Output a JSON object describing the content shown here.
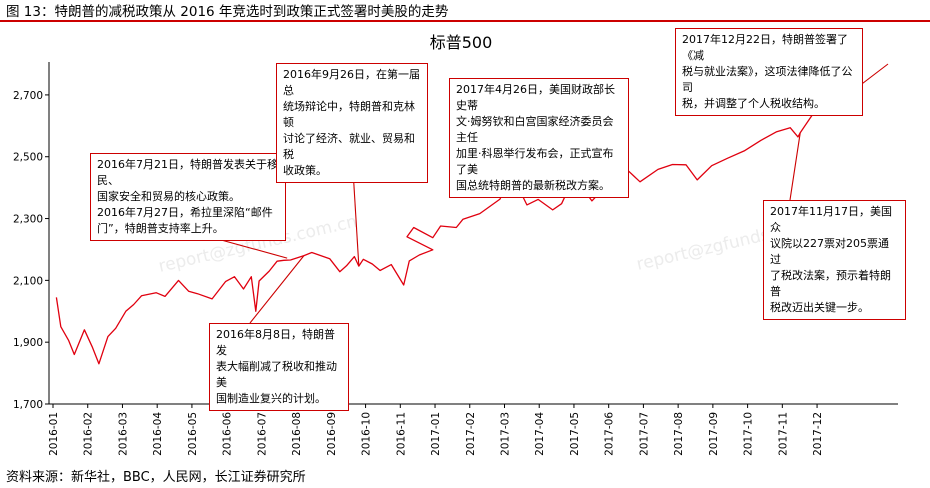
{
  "header": "图 13：特朗普的减税政策从 2016 年竞选时到政策正式签署时美股的走势",
  "source": "资料来源：新华社，BBC，人民网，长江证券研究所",
  "watermark": "report@zgfunds.com.cn",
  "colors": {
    "accent": "#cc0000",
    "line": "#e0000f"
  },
  "chart_data": {
    "type": "line",
    "title": "标普500",
    "ylim": [
      1700,
      2800
    ],
    "yticks": [
      {
        "value": 1700,
        "label": "1,700"
      },
      {
        "value": 1900,
        "label": "1,900"
      },
      {
        "value": 2100,
        "label": "2,100"
      },
      {
        "value": 2300,
        "label": "2,300"
      },
      {
        "value": 2500,
        "label": "2,500"
      },
      {
        "value": 2700,
        "label": "2,700"
      }
    ],
    "xticks": [
      "2016-01",
      "2016-02",
      "2016-03",
      "2016-04",
      "2016-05",
      "2016-06",
      "2016-07",
      "2016-08",
      "2016-09",
      "2016-10",
      "2016-11",
      "2017-01",
      "2017-02",
      "2017-03",
      "2017-04",
      "2017-05",
      "2017-06",
      "2017-07",
      "2017-08",
      "2017-09",
      "2017-10",
      "2017-11",
      "2017-12"
    ],
    "grid": false,
    "legend": "none",
    "series": [
      {
        "points": [
          [
            "2016-01-04",
            2045
          ],
          [
            "2016-01-08",
            1950
          ],
          [
            "2016-01-15",
            1905
          ],
          [
            "2016-01-20",
            1860
          ],
          [
            "2016-01-29",
            1940
          ],
          [
            "2016-02-05",
            1885
          ],
          [
            "2016-02-11",
            1830
          ],
          [
            "2016-02-19",
            1918
          ],
          [
            "2016-02-26",
            1945
          ],
          [
            "2016-03-04",
            2000
          ],
          [
            "2016-03-11",
            2022
          ],
          [
            "2016-03-18",
            2050
          ],
          [
            "2016-03-31",
            2060
          ],
          [
            "2016-04-08",
            2048
          ],
          [
            "2016-04-20",
            2100
          ],
          [
            "2016-04-29",
            2065
          ],
          [
            "2016-05-06",
            2057
          ],
          [
            "2016-05-19",
            2040
          ],
          [
            "2016-05-31",
            2096
          ],
          [
            "2016-06-08",
            2112
          ],
          [
            "2016-06-16",
            2072
          ],
          [
            "2016-06-23",
            2112
          ],
          [
            "2016-06-27",
            2000
          ],
          [
            "2016-06-30",
            2098
          ],
          [
            "2016-07-08",
            2130
          ],
          [
            "2016-07-15",
            2162
          ],
          [
            "2016-07-21",
            2165
          ],
          [
            "2016-07-27",
            2166
          ],
          [
            "2016-08-08",
            2180
          ],
          [
            "2016-08-15",
            2190
          ],
          [
            "2016-08-31",
            2170
          ],
          [
            "2016-09-09",
            2128
          ],
          [
            "2016-09-15",
            2147
          ],
          [
            "2016-09-22",
            2177
          ],
          [
            "2016-09-26",
            2146
          ],
          [
            "2016-09-30",
            2168
          ],
          [
            "2016-10-07",
            2153
          ],
          [
            "2016-10-14",
            2132
          ],
          [
            "2016-10-24",
            2151
          ],
          [
            "2016-11-04",
            2085
          ],
          [
            "2016-11-09",
            2163
          ],
          [
            "2016-11-18",
            2182
          ],
          [
            "2016-11-30",
            2199
          ],
          [
            "2016-12-07",
            2241
          ],
          [
            "2016-12-13",
            2271
          ],
          [
            "2016-12-30",
            2238
          ],
          [
            "2017-01-06",
            2276
          ],
          [
            "2017-01-20",
            2271
          ],
          [
            "2017-01-26",
            2298
          ],
          [
            "2017-02-10",
            2316
          ],
          [
            "2017-02-28",
            2363
          ],
          [
            "2017-03-01",
            2395
          ],
          [
            "2017-03-16",
            2381
          ],
          [
            "2017-03-21",
            2344
          ],
          [
            "2017-03-31",
            2362
          ],
          [
            "2017-04-13",
            2328
          ],
          [
            "2017-04-21",
            2348
          ],
          [
            "2017-04-26",
            2387
          ],
          [
            "2017-05-09",
            2397
          ],
          [
            "2017-05-17",
            2357
          ],
          [
            "2017-05-31",
            2411
          ],
          [
            "2017-06-09",
            2431
          ],
          [
            "2017-06-19",
            2453
          ],
          [
            "2017-06-29",
            2419
          ],
          [
            "2017-07-14",
            2459
          ],
          [
            "2017-07-27",
            2475
          ],
          [
            "2017-08-08",
            2474
          ],
          [
            "2017-08-18",
            2425
          ],
          [
            "2017-08-31",
            2471
          ],
          [
            "2017-09-14",
            2495
          ],
          [
            "2017-09-29",
            2519
          ],
          [
            "2017-10-13",
            2553
          ],
          [
            "2017-10-27",
            2581
          ],
          [
            "2017-11-08",
            2594
          ],
          [
            "2017-11-15",
            2564
          ],
          [
            "2017-11-17",
            2578
          ],
          [
            "2017-11-30",
            2647
          ],
          [
            "2017-12-08",
            2651
          ],
          [
            "2017-12-18",
            2690
          ],
          [
            "2017-12-22",
            2683
          ],
          [
            "2017-12-29",
            2673
          ]
        ]
      }
    ],
    "annotations": [
      {
        "id": "ann-jul",
        "lines": [
          "2016年7月21日，特朗普发表关于移民、",
          "国家安全和贸易的核心政策。",
          "2016年7月27日，希拉里深陷“邮件",
          "门”，特朗普支持率上升。"
        ],
        "date": "2016-07-24",
        "value": 2172
      },
      {
        "id": "ann-aug",
        "lines": [
          "2016年8月8日，特朗普发",
          "表大幅削减了税收和推动美",
          "国制造业复兴的计划。"
        ],
        "date": "2016-08-08",
        "value": 2180
      },
      {
        "id": "ann-sep",
        "lines": [
          "2016年9月26日，在第一届总",
          "统场辩论中，特朗普和克林顿",
          "讨论了经济、就业、贸易和税",
          "收政策。"
        ],
        "date": "2016-09-26",
        "value": 2146
      },
      {
        "id": "ann-apr",
        "lines": [
          "2017年4月26日，美国财政部长史蒂",
          "文·姆努钦和白宫国家经济委员会主任",
          "加里·科恩举行发布会，正式宣布了美",
          "国总统特朗普的最新税改方案。"
        ],
        "date": "2017-04-26",
        "value": 2387
      },
      {
        "id": "ann-dec",
        "lines": [
          "2017年12月22日，特朗普签署了《减",
          "税与就业法案》，这项法律降低了公司",
          "税，并调整了个人税收结构。"
        ],
        "date": "2017-12-22",
        "value": 2683
      },
      {
        "id": "ann-nov",
        "lines": [
          "2017年11月17日，美国众",
          "议院以227票对205票通过",
          "了税改法案，预示着特朗普",
          "税改迈出关键一步。"
        ],
        "date": "2017-11-17",
        "value": 2578
      }
    ]
  }
}
